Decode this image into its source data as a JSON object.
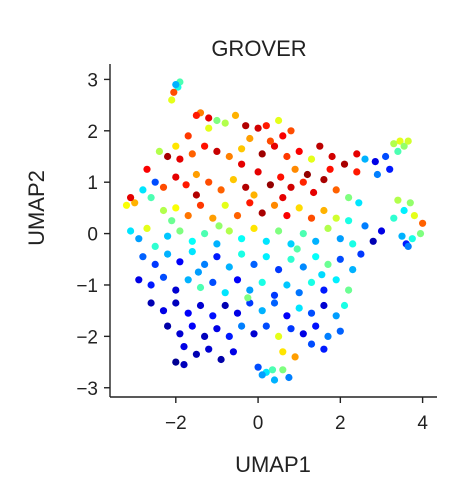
{
  "chart_data": {
    "type": "scatter",
    "title": "GROVER",
    "xlabel": "UMAP1",
    "ylabel": "UMAP2",
    "xlim": [
      -3.6,
      4.35
    ],
    "ylim": [
      -3.18,
      3.3
    ],
    "xticks": [
      -2,
      0,
      2,
      4
    ],
    "xtick_labels": [
      "−2",
      "0",
      "2",
      "4"
    ],
    "yticks": [
      -3,
      -2,
      -1,
      0,
      1,
      2,
      3
    ],
    "ytick_labels": [
      "−3",
      "−2",
      "−1",
      "0",
      "1",
      "2",
      "3"
    ],
    "grid": false,
    "legend": "none",
    "colormap": "jet",
    "colormap_stops": [
      "#00007f",
      "#0000ff",
      "#007fff",
      "#00ffff",
      "#7fff7f",
      "#ffff00",
      "#ff7f00",
      "#ff0000",
      "#7f0000"
    ],
    "point_value_range": [
      0,
      1
    ],
    "series": [
      {
        "columns": [
          "x",
          "y",
          "color_value"
        ],
        "points": [
          [
            -1.9,
            2.95,
            0.45
          ],
          [
            -1.95,
            2.85,
            0.4
          ],
          [
            -2.0,
            2.9,
            0.3
          ],
          [
            -2.05,
            2.75,
            0.8
          ],
          [
            -2.1,
            2.6,
            0.6
          ],
          [
            -1.4,
            2.35,
            0.75
          ],
          [
            -1.5,
            2.3,
            0.85
          ],
          [
            -1.2,
            2.25,
            0.9
          ],
          [
            -1.0,
            2.2,
            0.5
          ],
          [
            -0.8,
            2.15,
            0.55
          ],
          [
            -0.55,
            2.3,
            0.7
          ],
          [
            -0.3,
            2.1,
            0.95
          ],
          [
            0.0,
            2.05,
            0.92
          ],
          [
            0.2,
            2.1,
            0.85
          ],
          [
            0.5,
            2.2,
            0.6
          ],
          [
            0.8,
            2.0,
            0.8
          ],
          [
            0.6,
            1.9,
            0.88
          ],
          [
            -0.2,
            1.85,
            0.72
          ],
          [
            -1.7,
            1.9,
            0.82
          ],
          [
            -2.0,
            1.7,
            0.65
          ],
          [
            -2.2,
            1.5,
            0.96
          ],
          [
            -2.4,
            1.6,
            0.55
          ],
          [
            -1.9,
            1.45,
            0.9
          ],
          [
            -1.6,
            1.55,
            0.78
          ],
          [
            -1.3,
            1.7,
            0.86
          ],
          [
            -1.0,
            1.6,
            0.93
          ],
          [
            -0.7,
            1.5,
            0.75
          ],
          [
            -0.4,
            1.65,
            0.68
          ],
          [
            0.1,
            1.55,
            0.97
          ],
          [
            0.4,
            1.7,
            0.9
          ],
          [
            0.7,
            1.5,
            0.82
          ],
          [
            1.0,
            1.6,
            0.88
          ],
          [
            1.3,
            1.45,
            0.6
          ],
          [
            1.5,
            1.7,
            0.94
          ],
          [
            1.8,
            1.5,
            0.92
          ],
          [
            2.1,
            1.35,
            0.96
          ],
          [
            2.4,
            1.2,
            0.85
          ],
          [
            2.6,
            1.45,
            0.3
          ],
          [
            2.85,
            1.4,
            0.1
          ],
          [
            3.1,
            1.5,
            0.2
          ],
          [
            3.2,
            1.25,
            0.15
          ],
          [
            2.9,
            1.15,
            0.25
          ],
          [
            3.3,
            1.75,
            0.55
          ],
          [
            3.45,
            1.8,
            0.6
          ],
          [
            3.55,
            1.7,
            0.52
          ],
          [
            3.65,
            1.8,
            0.58
          ],
          [
            3.4,
            1.6,
            0.45
          ],
          [
            -2.7,
            1.25,
            0.88
          ],
          [
            -2.5,
            1.0,
            0.2
          ],
          [
            -2.8,
            0.85,
            0.35
          ],
          [
            -3.0,
            0.6,
            0.7
          ],
          [
            -3.2,
            0.55,
            0.62
          ],
          [
            -3.1,
            0.7,
            0.9
          ],
          [
            -2.6,
            0.7,
            0.45
          ],
          [
            -2.3,
            0.9,
            0.8
          ],
          [
            -2.0,
            1.1,
            0.9
          ],
          [
            -1.75,
            0.95,
            0.85
          ],
          [
            -1.5,
            1.15,
            0.72
          ],
          [
            -1.2,
            1.0,
            0.8
          ],
          [
            -0.9,
            0.85,
            0.78
          ],
          [
            -0.6,
            1.05,
            0.68
          ],
          [
            -0.3,
            0.9,
            0.95
          ],
          [
            0.0,
            1.2,
            0.9
          ],
          [
            0.3,
            0.95,
            0.98
          ],
          [
            0.55,
            1.1,
            0.86
          ],
          [
            0.8,
            0.9,
            0.92
          ],
          [
            1.1,
            1.0,
            0.84
          ],
          [
            1.35,
            0.8,
            0.9
          ],
          [
            1.6,
            1.05,
            0.96
          ],
          [
            1.9,
            0.85,
            0.78
          ],
          [
            2.2,
            0.7,
            0.5
          ],
          [
            2.45,
            0.6,
            0.35
          ],
          [
            -2.3,
            0.45,
            0.55
          ],
          [
            -2.0,
            0.5,
            0.62
          ],
          [
            -1.7,
            0.35,
            0.76
          ],
          [
            -1.4,
            0.55,
            0.82
          ],
          [
            -1.1,
            0.3,
            0.72
          ],
          [
            -0.8,
            0.55,
            0.6
          ],
          [
            -0.5,
            0.35,
            0.78
          ],
          [
            -0.2,
            0.6,
            0.85
          ],
          [
            0.1,
            0.4,
            0.96
          ],
          [
            0.4,
            0.55,
            0.74
          ],
          [
            0.7,
            0.35,
            0.88
          ],
          [
            1.0,
            0.5,
            0.66
          ],
          [
            1.3,
            0.3,
            0.8
          ],
          [
            1.6,
            0.45,
            0.7
          ],
          [
            1.9,
            0.3,
            0.58
          ],
          [
            2.2,
            0.25,
            0.4
          ],
          [
            2.6,
            0.15,
            0.25
          ],
          [
            3.3,
            0.3,
            0.42
          ],
          [
            3.55,
            0.45,
            0.36
          ],
          [
            3.7,
            0.6,
            0.52
          ],
          [
            3.4,
            0.65,
            0.55
          ],
          [
            3.8,
            0.35,
            0.6
          ],
          [
            4.0,
            0.2,
            0.78
          ],
          [
            3.95,
            0.0,
            0.5
          ],
          [
            3.75,
            -0.1,
            0.4
          ],
          [
            3.6,
            -0.2,
            0.15
          ],
          [
            3.5,
            -0.05,
            0.3
          ],
          [
            3.65,
            -0.25,
            0.25
          ],
          [
            3.0,
            0.05,
            0.1
          ],
          [
            2.8,
            -0.15,
            0.05
          ],
          [
            -3.1,
            0.05,
            0.35
          ],
          [
            -2.9,
            -0.1,
            0.28
          ],
          [
            -2.7,
            0.1,
            0.6
          ],
          [
            -2.5,
            -0.25,
            0.42
          ],
          [
            -2.2,
            -0.05,
            0.32
          ],
          [
            -1.9,
            0.05,
            0.5
          ],
          [
            -1.6,
            -0.15,
            0.38
          ],
          [
            -1.3,
            0.0,
            0.45
          ],
          [
            -1.0,
            -0.2,
            0.3
          ],
          [
            -0.7,
            0.05,
            0.55
          ],
          [
            -0.4,
            -0.1,
            0.38
          ],
          [
            -0.1,
            0.1,
            0.65
          ],
          [
            0.2,
            -0.15,
            0.35
          ],
          [
            0.5,
            0.05,
            0.5
          ],
          [
            0.8,
            -0.2,
            0.33
          ],
          [
            1.1,
            0.0,
            0.45
          ],
          [
            1.4,
            -0.15,
            0.3
          ],
          [
            1.7,
            0.1,
            0.55
          ],
          [
            2.0,
            -0.1,
            0.28
          ],
          [
            2.3,
            -0.2,
            0.4
          ],
          [
            -2.8,
            -0.45,
            0.22
          ],
          [
            -2.5,
            -0.6,
            0.18
          ],
          [
            -2.2,
            -0.4,
            0.3
          ],
          [
            -1.9,
            -0.55,
            0.12
          ],
          [
            -1.6,
            -0.35,
            0.35
          ],
          [
            -1.3,
            -0.6,
            0.25
          ],
          [
            -1.0,
            -0.45,
            0.15
          ],
          [
            -0.7,
            -0.65,
            0.3
          ],
          [
            -0.4,
            -0.4,
            0.4
          ],
          [
            -0.1,
            -0.6,
            0.22
          ],
          [
            0.2,
            -0.45,
            0.36
          ],
          [
            0.5,
            -0.7,
            0.18
          ],
          [
            0.8,
            -0.5,
            0.42
          ],
          [
            1.1,
            -0.65,
            0.26
          ],
          [
            1.4,
            -0.45,
            0.38
          ],
          [
            1.7,
            -0.6,
            0.48
          ],
          [
            2.0,
            -0.5,
            0.2
          ],
          [
            2.3,
            -0.7,
            0.3
          ],
          [
            -2.9,
            -0.9,
            0.1
          ],
          [
            -2.6,
            -1.0,
            0.15
          ],
          [
            -2.3,
            -0.85,
            0.2
          ],
          [
            -2.0,
            -1.1,
            0.08
          ],
          [
            -1.7,
            -0.9,
            0.3
          ],
          [
            -1.4,
            -1.05,
            0.45
          ],
          [
            -1.1,
            -0.95,
            0.2
          ],
          [
            -0.8,
            -1.15,
            0.35
          ],
          [
            -0.5,
            -0.9,
            0.12
          ],
          [
            -0.2,
            -1.1,
            0.28
          ],
          [
            0.1,
            -0.95,
            0.4
          ],
          [
            0.4,
            -1.2,
            0.18
          ],
          [
            0.7,
            -1.0,
            0.32
          ],
          [
            1.0,
            -1.15,
            0.24
          ],
          [
            1.3,
            -0.95,
            0.4
          ],
          [
            1.6,
            -1.1,
            0.15
          ],
          [
            1.9,
            -0.9,
            0.36
          ],
          [
            2.2,
            -1.1,
            0.48
          ],
          [
            -2.6,
            -1.35,
            0.05
          ],
          [
            -2.3,
            -1.5,
            0.1
          ],
          [
            -2.0,
            -1.35,
            0.06
          ],
          [
            -1.7,
            -1.55,
            0.12
          ],
          [
            -1.4,
            -1.4,
            0.08
          ],
          [
            -1.1,
            -1.6,
            0.14
          ],
          [
            -0.8,
            -1.4,
            0.05
          ],
          [
            -0.5,
            -1.55,
            0.1
          ],
          [
            -0.2,
            -1.35,
            0.18
          ],
          [
            0.1,
            -1.5,
            0.3
          ],
          [
            0.4,
            -1.35,
            0.22
          ],
          [
            0.7,
            -1.6,
            0.12
          ],
          [
            1.0,
            -1.45,
            0.35
          ],
          [
            1.3,
            -1.55,
            0.2
          ],
          [
            1.6,
            -1.4,
            0.08
          ],
          [
            1.9,
            -1.6,
            0.28
          ],
          [
            2.1,
            -1.4,
            0.4
          ],
          [
            -2.2,
            -1.8,
            0.04
          ],
          [
            -1.9,
            -1.95,
            0.08
          ],
          [
            -1.6,
            -1.8,
            0.12
          ],
          [
            -1.3,
            -2.0,
            0.06
          ],
          [
            -1.0,
            -1.85,
            0.1
          ],
          [
            -0.7,
            -2.0,
            0.15
          ],
          [
            -0.4,
            -1.8,
            0.25
          ],
          [
            -0.1,
            -1.95,
            0.08
          ],
          [
            0.2,
            -1.8,
            0.2
          ],
          [
            0.5,
            -2.0,
            0.6
          ],
          [
            0.8,
            -1.85,
            0.18
          ],
          [
            1.1,
            -1.95,
            0.1
          ],
          [
            1.4,
            -1.8,
            0.14
          ],
          [
            1.7,
            -2.0,
            0.25
          ],
          [
            2.0,
            -1.9,
            0.22
          ],
          [
            -1.8,
            -2.2,
            0.1
          ],
          [
            -1.5,
            -2.35,
            0.05
          ],
          [
            -1.2,
            -2.25,
            0.08
          ],
          [
            -0.9,
            -2.45,
            0.04
          ],
          [
            -0.6,
            -2.3,
            0.1
          ],
          [
            1.3,
            -2.15,
            0.2
          ],
          [
            1.6,
            -2.25,
            0.15
          ],
          [
            0.6,
            -2.3,
            0.65
          ],
          [
            0.9,
            -2.4,
            0.72
          ],
          [
            -2.0,
            -2.5,
            0.02
          ],
          [
            -1.8,
            -2.55,
            0.06
          ],
          [
            0.0,
            -2.6,
            0.2
          ],
          [
            0.2,
            -2.7,
            0.35
          ],
          [
            0.4,
            -2.85,
            0.3
          ],
          [
            0.6,
            -2.65,
            0.5
          ],
          [
            0.75,
            -2.8,
            0.25
          ],
          [
            0.35,
            -2.65,
            0.45
          ],
          [
            0.1,
            -2.75,
            0.28
          ],
          [
            -0.4,
            1.35,
            0.9
          ],
          [
            -1.2,
            2.05,
            0.6
          ],
          [
            0.9,
            1.25,
            0.74
          ],
          [
            1.2,
            1.15,
            0.98
          ],
          [
            -0.1,
            0.75,
            0.7
          ],
          [
            0.6,
            0.7,
            0.9
          ],
          [
            -1.5,
            0.75,
            0.95
          ],
          [
            2.4,
            1.55,
            0.9
          ],
          [
            1.75,
            1.25,
            0.86
          ],
          [
            -2.1,
            0.25,
            0.48
          ],
          [
            2.5,
            -0.4,
            0.18
          ],
          [
            -0.25,
            -1.25,
            0.5
          ],
          [
            0.95,
            -0.3,
            0.46
          ],
          [
            -1.45,
            -0.75,
            0.28
          ],
          [
            1.55,
            -0.8,
            0.34
          ],
          [
            -0.95,
            0.15,
            0.52
          ],
          [
            0.3,
            1.8,
            0.8
          ]
        ]
      }
    ]
  }
}
